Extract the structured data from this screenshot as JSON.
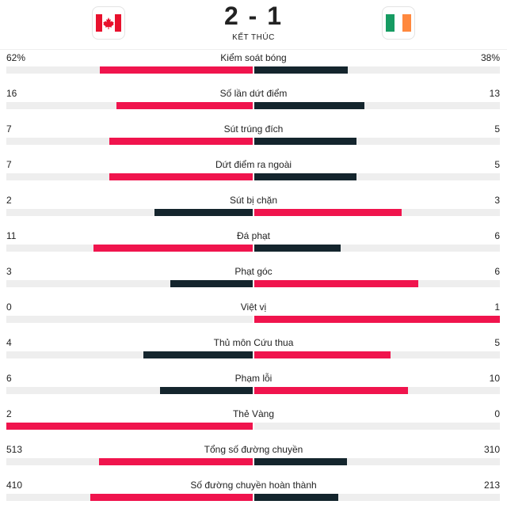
{
  "match": {
    "home_flag": "canada-flag-icon",
    "away_flag": "ireland-flag-icon",
    "score": "2 - 1",
    "status": "KẾT THÚC"
  },
  "colors": {
    "winner": "#f0144d",
    "loser": "#14252d",
    "track": "#eeeeee"
  },
  "stats": [
    {
      "label": "Kiểm soát bóng",
      "home": "62%",
      "away": "38%",
      "home_val": 62,
      "away_val": 38
    },
    {
      "label": "Số lần dứt điểm",
      "home": "16",
      "away": "13",
      "home_val": 16,
      "away_val": 13
    },
    {
      "label": "Sút trúng đích",
      "home": "7",
      "away": "5",
      "home_val": 7,
      "away_val": 5
    },
    {
      "label": "Dứt điểm ra ngoài",
      "home": "7",
      "away": "5",
      "home_val": 7,
      "away_val": 5
    },
    {
      "label": "Sút bị chặn",
      "home": "2",
      "away": "3",
      "home_val": 2,
      "away_val": 3
    },
    {
      "label": "Đá phạt",
      "home": "11",
      "away": "6",
      "home_val": 11,
      "away_val": 6
    },
    {
      "label": "Phạt góc",
      "home": "3",
      "away": "6",
      "home_val": 3,
      "away_val": 6
    },
    {
      "label": "Việt vị",
      "home": "0",
      "away": "1",
      "home_val": 0,
      "away_val": 1
    },
    {
      "label": "Thủ môn Cứu thua",
      "home": "4",
      "away": "5",
      "home_val": 4,
      "away_val": 5
    },
    {
      "label": "Phạm lỗi",
      "home": "6",
      "away": "10",
      "home_val": 6,
      "away_val": 10
    },
    {
      "label": "Thẻ Vàng",
      "home": "2",
      "away": "0",
      "home_val": 2,
      "away_val": 0
    },
    {
      "label": "Tổng số đường chuyền",
      "home": "513",
      "away": "310",
      "home_val": 513,
      "away_val": 310
    },
    {
      "label": "Số đường chuyền hoàn thành",
      "home": "410",
      "away": "213",
      "home_val": 410,
      "away_val": 213
    }
  ]
}
